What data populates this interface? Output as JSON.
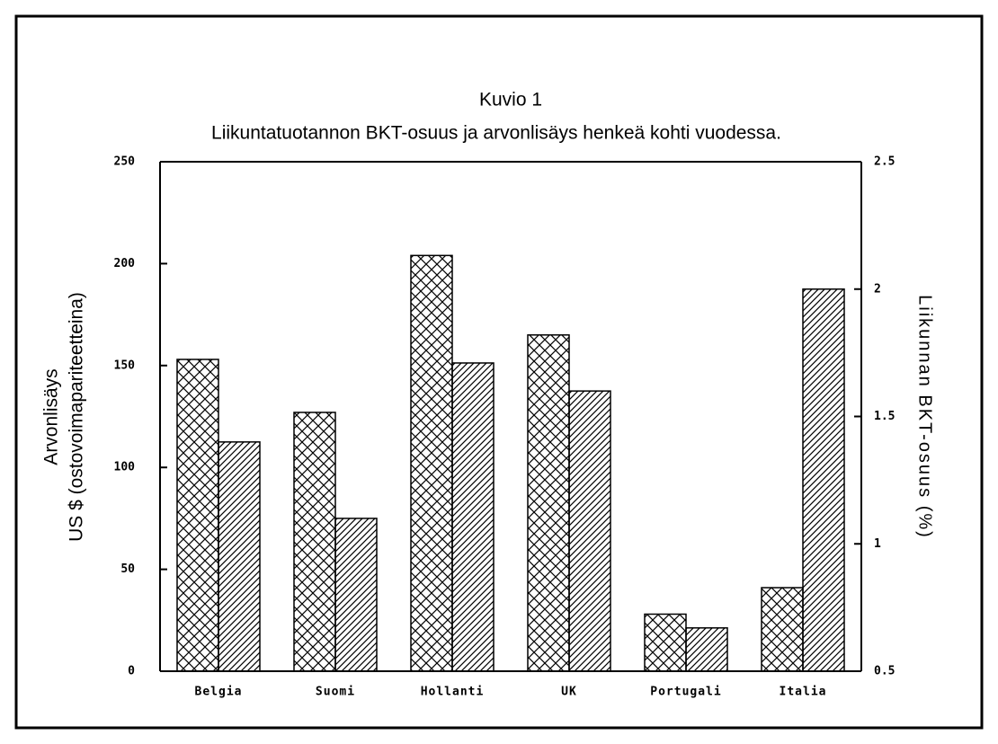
{
  "chart_data": {
    "type": "bar",
    "title": "Kuvio 1",
    "subtitle": "Liikuntatuotannon BKT-osuus ja arvonlisäys henkeä kohti vuodessa.",
    "ylabel": [
      "Arvonlisäys",
      "US $ (ostovoimapariteetteina)"
    ],
    "y2label": "Liikunnan BKT-osuus (%)",
    "categories": [
      "Belgia",
      "Suomi",
      "Hollanti",
      "UK",
      "Portugali",
      "Italia"
    ],
    "series": [
      {
        "color": "#000000",
        "pattern": "crosshatch",
        "axis": "y",
        "values": [
          153,
          127,
          204,
          165,
          28,
          41
        ]
      },
      {
        "color": "#000000",
        "pattern": "diagonal",
        "axis": "y2",
        "values": [
          1.4,
          1.1,
          1.71,
          1.6,
          0.67,
          2.0
        ]
      }
    ],
    "ylim": [
      0,
      250
    ],
    "yticks": [
      0,
      50,
      100,
      150,
      200,
      250
    ],
    "y2lim": [
      0.5,
      2.5
    ],
    "y2ticks": [
      0.5,
      1,
      1.5,
      2,
      2.5
    ]
  }
}
